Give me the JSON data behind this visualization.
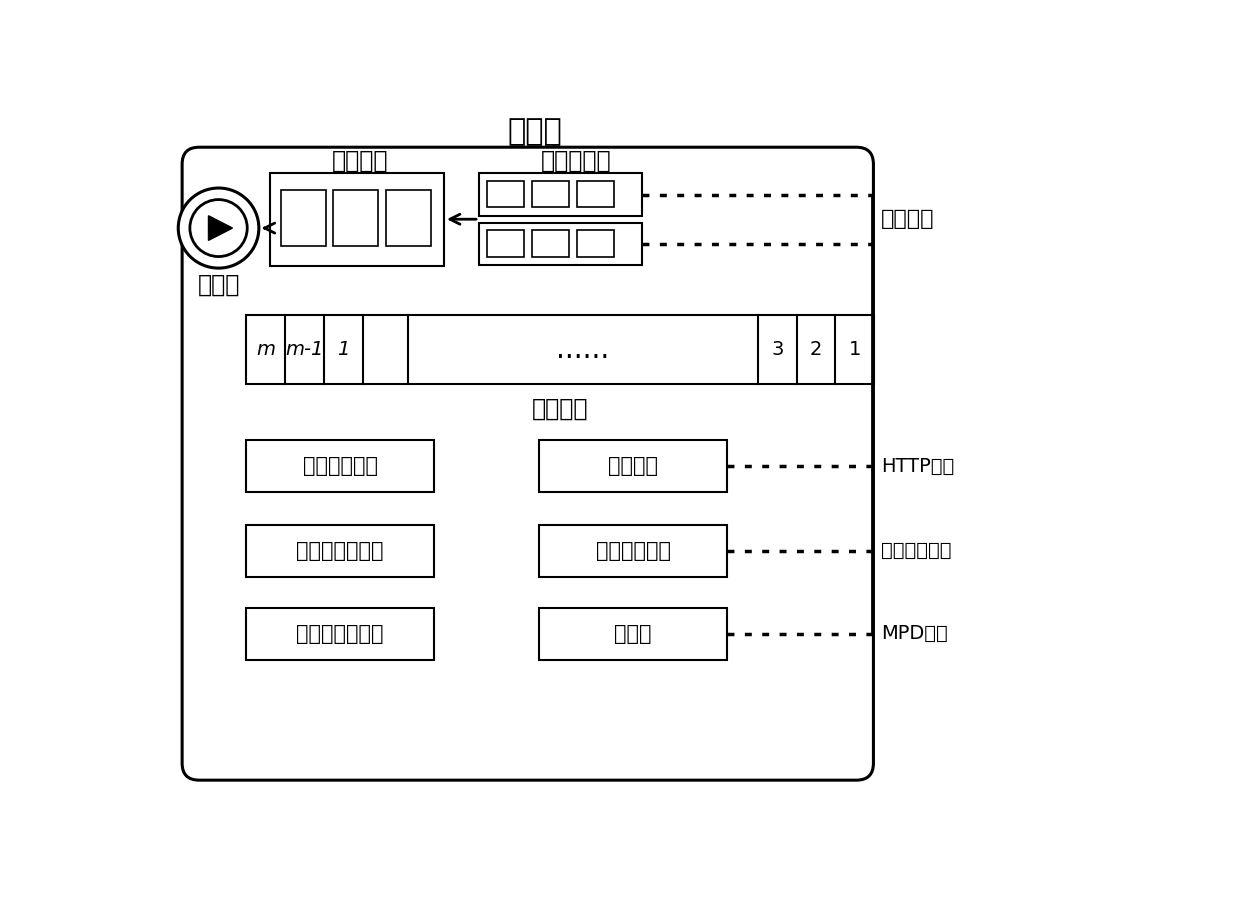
{
  "bg_color": "#ffffff",
  "labels": {
    "client": "客户端",
    "play_buffer": "播放缓冲",
    "data_buffer": "数据缓冲区",
    "player": "播放器",
    "request_queue": "请求队列",
    "buffer_monitor": "缓冲监控模块",
    "code_rate": "码率自适应模块",
    "server_select": "服务器选择模块",
    "scheduler": "调度模块",
    "network_monitor": "网络监控模块",
    "parser": "解析器",
    "media_segment": "媒体分段",
    "http_request": "HTTP请求",
    "probe_data": "探测数据分组",
    "mpd_file": "MPD文件"
  },
  "queue_left_labels": [
    "m",
    "m-1",
    "1"
  ],
  "queue_right_labels": [
    "3",
    "2",
    "1"
  ],
  "fig_w": 12.4,
  "fig_h": 9.06,
  "dpi": 100
}
